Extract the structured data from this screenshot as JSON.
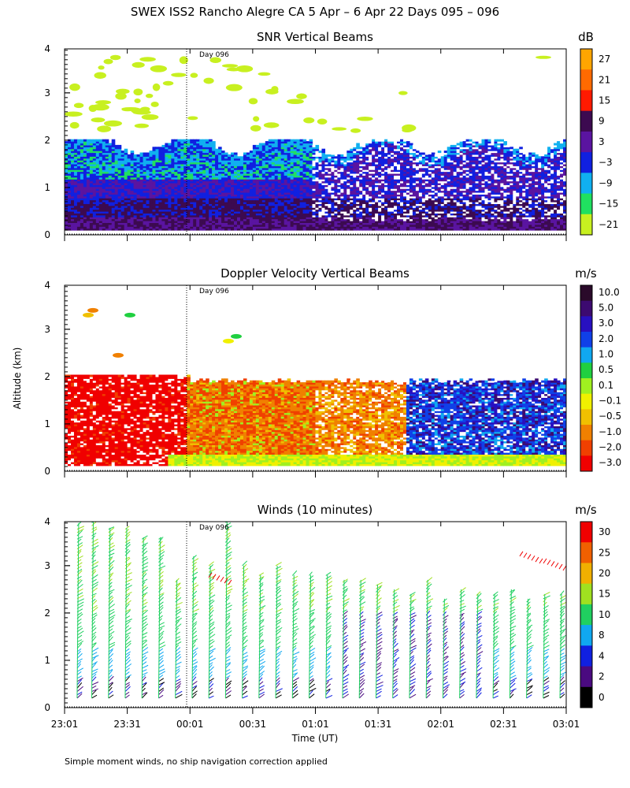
{
  "figure": {
    "title": "SWEX ISS2 Rancho Alegre CA   5 Apr –  6 Apr 22 Days 095 – 096",
    "ylabel": "Altitude (km)",
    "xlabel": "Time (UT)",
    "footnote": "Simple moment winds, no ship navigation correction applied",
    "day_marker": "Day 096"
  },
  "chart_data": [
    {
      "type": "heatmap",
      "title": "SNR Vertical Beams",
      "unit": "dB",
      "x_ticks": [
        "23:01",
        "23:31",
        "00:01",
        "00:31",
        "01:01",
        "01:31",
        "02:01",
        "02:31",
        "03:01"
      ],
      "y_ticks": [
        "0",
        "1",
        "2",
        "3",
        "4"
      ],
      "ylim": [
        0,
        4
      ],
      "colorbar_labels": [
        "27",
        "21",
        "15",
        "9",
        "3",
        "−3",
        "−9",
        "−15",
        "−21"
      ],
      "colorbar_colors": [
        "#ffa500",
        "#ff6a00",
        "#ff1a00",
        "#3c0a50",
        "#5a14a0",
        "#1020e0",
        "#10b0f0",
        "#20e060",
        "#c8f020"
      ],
      "layers": [
        {
          "altitude_km": [
            0.1,
            0.6
          ],
          "value_db": 9
        },
        {
          "altitude_km": [
            0.6,
            1.1
          ],
          "value_db": 3
        },
        {
          "altitude_km": [
            1.1,
            1.8
          ],
          "value_db": -9
        },
        {
          "altitude_km": [
            1.8,
            2.1
          ],
          "value_db": -3
        },
        {
          "altitude_km": [
            3.0,
            3.8
          ],
          "value_db": -21
        }
      ]
    },
    {
      "type": "heatmap",
      "title": "Doppler Velocity Vertical Beams",
      "unit": "m/s",
      "x_ticks": [
        "23:01",
        "23:31",
        "00:01",
        "00:31",
        "01:01",
        "01:31",
        "02:01",
        "02:31",
        "03:01"
      ],
      "y_ticks": [
        "0",
        "1",
        "2",
        "3",
        "4"
      ],
      "ylim": [
        0,
        4
      ],
      "colorbar_labels": [
        "10.0",
        "5.0",
        "3.0",
        "2.0",
        "1.0",
        "0.5",
        "0.1",
        "−0.1",
        "−0.5",
        "−1.0",
        "−2.0",
        "−3.0"
      ],
      "colorbar_colors": [
        "#2a0a2a",
        "#3c0a70",
        "#2810c0",
        "#1040e8",
        "#10a8f0",
        "#20d040",
        "#a0f020",
        "#f0f000",
        "#f0c000",
        "#f08000",
        "#f04000",
        "#f00000"
      ],
      "layers": [
        {
          "time_range": [
            "23:01",
            "00:01"
          ],
          "altitude_km": [
            0.1,
            2.1
          ],
          "value_ms": -3.0
        },
        {
          "time_range": [
            "00:01",
            "01:01"
          ],
          "altitude_km": [
            0.1,
            1.9
          ],
          "value_ms": -2.0
        },
        {
          "time_range": [
            "01:01",
            "01:46"
          ],
          "altitude_km": [
            0.1,
            1.9
          ],
          "value_ms": -1.0
        },
        {
          "time_range": [
            "01:46",
            "03:01"
          ],
          "altitude_km": [
            0.3,
            1.9
          ],
          "value_ms": 2.0
        }
      ]
    },
    {
      "type": "barbs",
      "title": "Winds (10 minutes)",
      "unit": "m/s",
      "x_ticks": [
        "23:01",
        "23:31",
        "00:01",
        "00:31",
        "01:01",
        "01:31",
        "02:01",
        "02:31",
        "03:01"
      ],
      "y_ticks": [
        "0",
        "1",
        "2",
        "3",
        "4"
      ],
      "ylim": [
        0,
        4
      ],
      "colorbar_labels": [
        "30",
        "25",
        "20",
        "15",
        "10",
        "8",
        "4",
        "2",
        "0"
      ],
      "colorbar_colors": [
        "#f00000",
        "#f06000",
        "#f0b000",
        "#a0e020",
        "#20d060",
        "#10a8f0",
        "#1020e0",
        "#4a0a80",
        "#000000"
      ],
      "profiles_time_index": [
        0.6,
        1.3,
        2.1,
        2.9,
        3.7,
        4.5,
        5.3,
        6.1,
        6.9,
        7.7,
        8.5,
        9.3,
        10.1,
        10.9,
        11.7,
        12.5,
        13.3,
        14.1,
        14.9,
        15.7,
        16.5,
        17.3,
        18.1,
        18.9,
        19.7,
        20.5,
        21.3,
        22.1,
        22.9,
        23.7
      ],
      "top_altitude_km": [
        3.9,
        4.0,
        3.8,
        3.8,
        3.6,
        3.6,
        2.7,
        3.2,
        3.0,
        4.0,
        3.0,
        2.8,
        3.0,
        2.8,
        2.8,
        2.8,
        2.7,
        2.7,
        2.6,
        2.5,
        2.4,
        2.7,
        2.3,
        2.5,
        2.4,
        2.4,
        2.5,
        2.3,
        2.4,
        2.4
      ]
    }
  ]
}
